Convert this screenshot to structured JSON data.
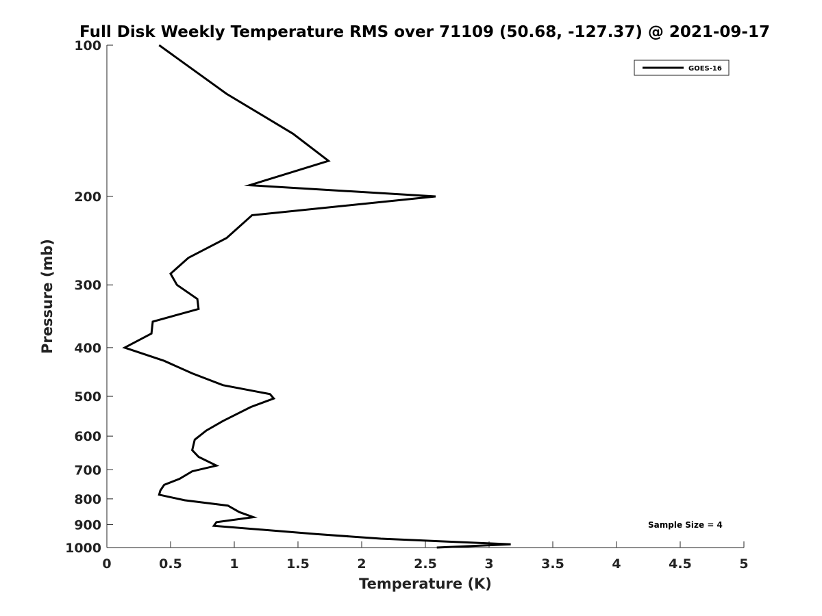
{
  "chart_data": {
    "type": "line",
    "title": "Full Disk Weekly Temperature RMS over 71109 (50.68, -127.37) @ 2021-09-17",
    "xlabel": "Temperature (K)",
    "ylabel": "Pressure (mb)",
    "xlim": [
      0,
      5
    ],
    "ylim": [
      1000,
      100
    ],
    "yscale": "log",
    "y_reversed": true,
    "x_ticks": [
      "0",
      "0.5",
      "1",
      "1.5",
      "2",
      "2.5",
      "3",
      "3.5",
      "4",
      "4.5",
      "5"
    ],
    "y_ticks": [
      "100",
      "200",
      "300",
      "400",
      "500",
      "600",
      "700",
      "800",
      "900",
      "1000"
    ],
    "grid": false,
    "legend_position": "top-right",
    "series": [
      {
        "name": "GOES-16",
        "color": "#000000",
        "points": [
          [
            0.41,
            100
          ],
          [
            0.94,
            125
          ],
          [
            1.46,
            150
          ],
          [
            1.74,
            170
          ],
          [
            1.12,
            190
          ],
          [
            2.58,
            200
          ],
          [
            1.14,
            218
          ],
          [
            0.94,
            242
          ],
          [
            0.64,
            265
          ],
          [
            0.5,
            285
          ],
          [
            0.55,
            300
          ],
          [
            0.71,
            320
          ],
          [
            0.72,
            335
          ],
          [
            0.36,
            355
          ],
          [
            0.35,
            375
          ],
          [
            0.14,
            400
          ],
          [
            0.45,
            425
          ],
          [
            0.67,
            450
          ],
          [
            0.91,
            475
          ],
          [
            1.28,
            495
          ],
          [
            1.31,
            505
          ],
          [
            1.13,
            525
          ],
          [
            0.91,
            560
          ],
          [
            0.78,
            585
          ],
          [
            0.69,
            610
          ],
          [
            0.67,
            640
          ],
          [
            0.72,
            660
          ],
          [
            0.86,
            687
          ],
          [
            0.67,
            705
          ],
          [
            0.57,
            730
          ],
          [
            0.45,
            750
          ],
          [
            0.42,
            770
          ],
          [
            0.41,
            785
          ],
          [
            0.61,
            805
          ],
          [
            0.95,
            825
          ],
          [
            1.04,
            850
          ],
          [
            1.15,
            870
          ],
          [
            0.86,
            890
          ],
          [
            0.84,
            905
          ],
          [
            1.64,
            940
          ],
          [
            2.15,
            960
          ],
          [
            2.75,
            975
          ],
          [
            3.17,
            985
          ],
          [
            2.59,
            1000
          ]
        ]
      }
    ],
    "annotation": "Sample Size = 4"
  }
}
